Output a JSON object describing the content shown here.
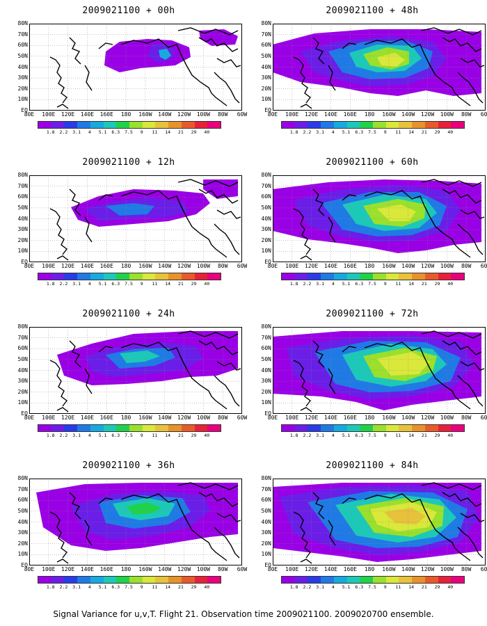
{
  "caption": "Signal Variance for u,v,T. Flight 21. Observation time 2009021100. 2009020700 ensemble.",
  "lat_labels": [
    "80N",
    "70N",
    "60N",
    "50N",
    "40N",
    "30N",
    "20N",
    "10N",
    "EQ"
  ],
  "lon_labels": [
    "80E",
    "100E",
    "120E",
    "140E",
    "160E",
    "180",
    "160W",
    "140W",
    "120W",
    "100W",
    "80W",
    "60W"
  ],
  "colorbar": {
    "labels": [
      "1.8",
      "2.2",
      "3.1",
      "4",
      "5.1",
      "6.3",
      "7.5",
      "9",
      "11",
      "14",
      "21",
      "29",
      "40"
    ],
    "colors": [
      "#9a00e6",
      "#6a1ee8",
      "#2a3be8",
      "#1f7ae6",
      "#17a9e0",
      "#1cc9b8",
      "#20d24a",
      "#9ae02c",
      "#d9e83a",
      "#e8c23a",
      "#e8922a",
      "#e85a2a",
      "#e8203a",
      "#e8007c"
    ]
  },
  "panels": [
    {
      "title": "2009021100 + 00h"
    },
    {
      "title": "2009021100 + 48h"
    },
    {
      "title": "2009021100 + 12h"
    },
    {
      "title": "2009021100 + 60h"
    },
    {
      "title": "2009021100 + 24h"
    },
    {
      "title": "2009021100 + 72h"
    },
    {
      "title": "2009021100 + 36h"
    },
    {
      "title": "2009021100 + 84h"
    }
  ]
}
